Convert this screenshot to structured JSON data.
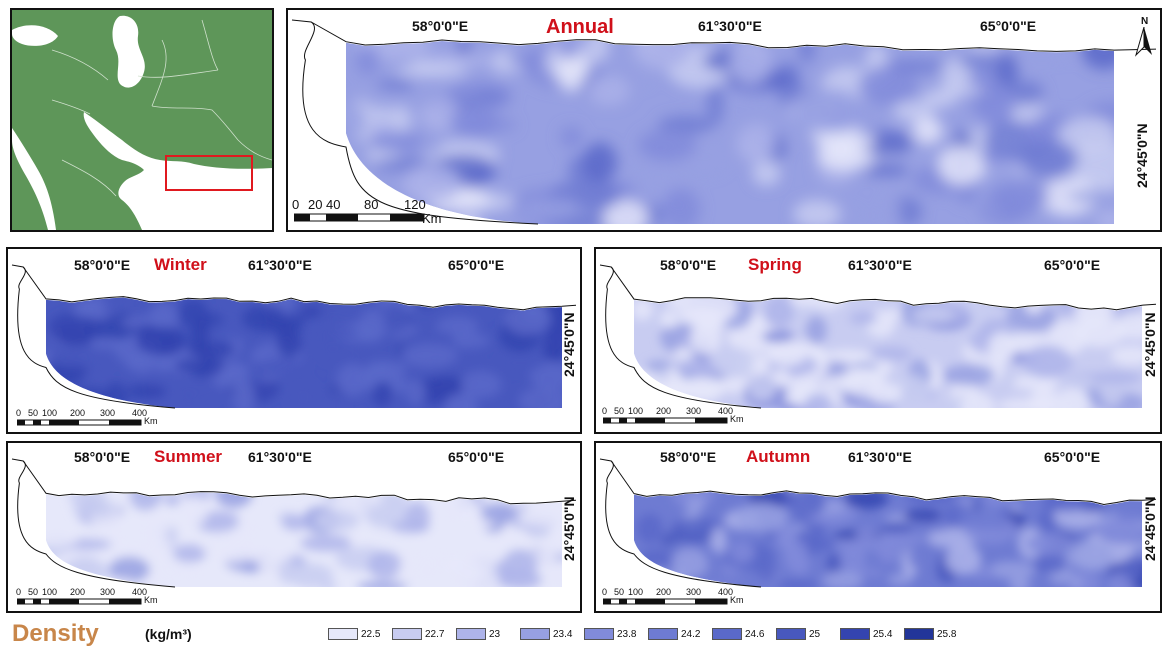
{
  "colors": {
    "classes": [
      "#e6e8fa",
      "#c8ccf1",
      "#aeb4ea",
      "#97a0e2",
      "#818bda",
      "#6e7bd2",
      "#5a69c9",
      "#4858be",
      "#3444b0",
      "#223599"
    ],
    "coast": "#111111",
    "overview_land": "#5e9659",
    "overview_water": "#ffffff",
    "highlight_box": "#e0191f",
    "season_label": "#d0101a",
    "legend_title": "#c8864a"
  },
  "overview_map": {
    "icon": "region-locator-map"
  },
  "panels": [
    {
      "id": "annual",
      "title": "Annual",
      "lon_labels": [
        "58°0'0\"E",
        "61°30'0\"E",
        "65°0'0\"E"
      ],
      "lat_label": "24°45'0\"N",
      "north_label": "N",
      "scalebar": {
        "ticks": [
          "0",
          "20",
          "40",
          "80",
          "120"
        ],
        "unit": "Km"
      },
      "density_bias": 0.35
    },
    {
      "id": "winter",
      "title": "Winter",
      "lon_labels": [
        "58°0'0\"E",
        "61°30'0\"E",
        "65°0'0\"E"
      ],
      "lat_label": "24°45'0\"N",
      "scalebar": {
        "ticks": [
          "0",
          "50",
          "100",
          "200",
          "300",
          "400"
        ],
        "unit": "Km"
      },
      "density_bias": 0.78
    },
    {
      "id": "spring",
      "title": "Spring",
      "lon_labels": [
        "58°0'0\"E",
        "61°30'0\"E",
        "65°0'0\"E"
      ],
      "lat_label": "24°45'0\"N",
      "scalebar": {
        "ticks": [
          "0",
          "50",
          "100",
          "200",
          "300",
          "400"
        ],
        "unit": "Km"
      },
      "density_bias": 0.15
    },
    {
      "id": "summer",
      "title": "Summer",
      "lon_labels": [
        "58°0'0\"E",
        "61°30'0\"E",
        "65°0'0\"E"
      ],
      "lat_label": "24°45'0\"N",
      "scalebar": {
        "ticks": [
          "0",
          "50",
          "100",
          "200",
          "300",
          "400"
        ],
        "unit": "Km"
      },
      "density_bias": 0.02
    },
    {
      "id": "autumn",
      "title": "Autumn",
      "lon_labels": [
        "58°0'0\"E",
        "61°30'0\"E",
        "65°0'0\"E"
      ],
      "lat_label": "24°45'0\"N",
      "scalebar": {
        "ticks": [
          "0",
          "50",
          "100",
          "200",
          "300",
          "400"
        ],
        "unit": "Km"
      },
      "density_bias": 0.55
    }
  ],
  "legend": {
    "title": "Density",
    "unit": "(kg/m³)",
    "classes": [
      {
        "label": "22.5",
        "color": "#e6e8fa"
      },
      {
        "label": "22.7",
        "color": "#c8ccf1"
      },
      {
        "label": "23",
        "color": "#aeb4ea"
      },
      {
        "label": "23.4",
        "color": "#97a0e2"
      },
      {
        "label": "23.8",
        "color": "#818bda"
      },
      {
        "label": "24.2",
        "color": "#6e7bd2"
      },
      {
        "label": "24.6",
        "color": "#5a69c9"
      },
      {
        "label": "25",
        "color": "#4858be"
      },
      {
        "label": "25.4",
        "color": "#3444b0"
      },
      {
        "label": "25.8",
        "color": "#223599"
      }
    ]
  }
}
